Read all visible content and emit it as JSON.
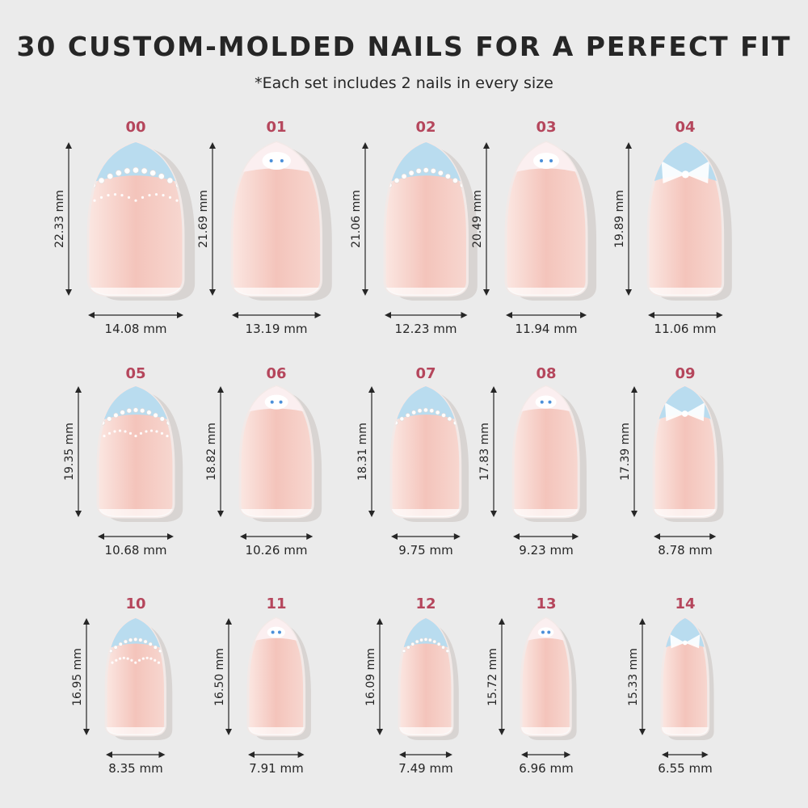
{
  "header": {
    "title": "30 CUSTOM-MOLDED NAILS FOR A PERFECT FIT",
    "subtitle": "*Each set includes 2 nails in every size"
  },
  "colors": {
    "background": "#ebebeb",
    "size_number": "#b5465c",
    "nail_base": "#f4c4bb",
    "nail_tip_blue": "#b9dcef",
    "text": "#262626"
  },
  "nails": [
    {
      "size": "00",
      "length": "22.33 mm",
      "width": "14.08 mm",
      "design": "pearl-heart"
    },
    {
      "size": "01",
      "length": "21.69 mm",
      "width": "13.19 mm",
      "design": "character"
    },
    {
      "size": "02",
      "length": "21.06 mm",
      "width": "12.23 mm",
      "design": "pearl-tip"
    },
    {
      "size": "03",
      "length": "20.49 mm",
      "width": "11.94 mm",
      "design": "character"
    },
    {
      "size": "04",
      "length": "19.89 mm",
      "width": "11.06 mm",
      "design": "bow"
    },
    {
      "size": "05",
      "length": "19.35 mm",
      "width": "10.68 mm",
      "design": "pearl-heart"
    },
    {
      "size": "06",
      "length": "18.82 mm",
      "width": "10.26 mm",
      "design": "character"
    },
    {
      "size": "07",
      "length": "18.31 mm",
      "width": "9.75 mm",
      "design": "pearl-tip"
    },
    {
      "size": "08",
      "length": "17.83 mm",
      "width": "9.23 mm",
      "design": "character"
    },
    {
      "size": "09",
      "length": "17.39 mm",
      "width": "8.78 mm",
      "design": "bow"
    },
    {
      "size": "10",
      "length": "16.95 mm",
      "width": "8.35 mm",
      "design": "pearl-heart"
    },
    {
      "size": "11",
      "length": "16.50 mm",
      "width": "7.91 mm",
      "design": "character"
    },
    {
      "size": "12",
      "length": "16.09 mm",
      "width": "7.49 mm",
      "design": "pearl-tip"
    },
    {
      "size": "13",
      "length": "15.72 mm",
      "width": "6.96 mm",
      "design": "character"
    },
    {
      "size": "14",
      "length": "15.33 mm",
      "width": "6.55 mm",
      "design": "bow"
    }
  ]
}
